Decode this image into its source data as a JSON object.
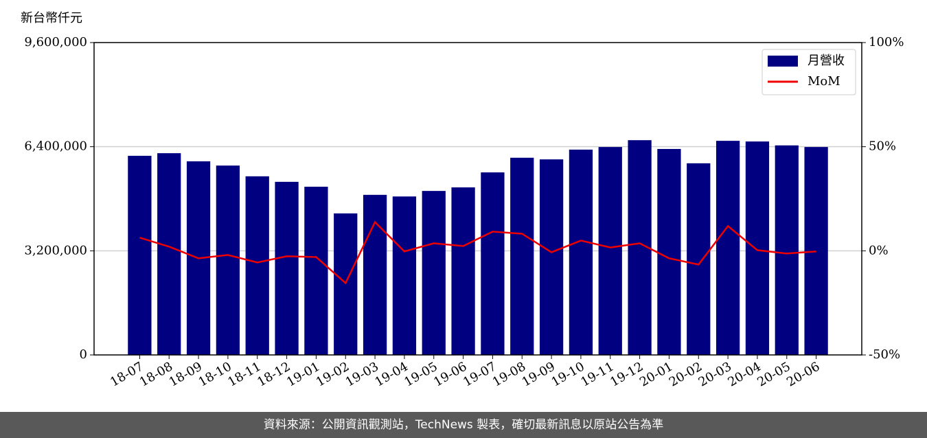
{
  "chart_data": {
    "type": "bar",
    "ylabel": "新台幣仟元",
    "categories": [
      "18-07",
      "18-08",
      "18-09",
      "18-10",
      "18-11",
      "18-12",
      "19-01",
      "19-02",
      "19-03",
      "19-04",
      "19-05",
      "19-06",
      "19-07",
      "19-08",
      "19-09",
      "19-10",
      "19-11",
      "19-12",
      "20-01",
      "20-02",
      "20-03",
      "20-04",
      "20-05",
      "20-06"
    ],
    "series": [
      {
        "name": "月營收",
        "type": "bar",
        "color": "#000080",
        "values": [
          6120000,
          6200000,
          5950000,
          5820000,
          5490000,
          5320000,
          5170000,
          4350000,
          4920000,
          4870000,
          5040000,
          5150000,
          5610000,
          6060000,
          6010000,
          6310000,
          6390000,
          6600000,
          6330000,
          5890000,
          6580000,
          6560000,
          6440000,
          6390000
        ]
      },
      {
        "name": "MoM",
        "type": "line",
        "color": "#ee0000",
        "axis": "y2",
        "values": [
          6.3,
          2.0,
          -3.6,
          -2.0,
          -5.6,
          -2.6,
          -3.0,
          -15.5,
          13.8,
          -0.3,
          3.6,
          2.3,
          9.2,
          8.2,
          -0.7,
          4.9,
          1.6,
          3.6,
          -3.6,
          -6.6,
          11.9,
          0.3,
          -1.3,
          -0.3
        ]
      }
    ],
    "ylim": [
      0,
      9600000
    ],
    "yticks": [
      0,
      {
        "value": 3200000,
        "label": "3,200,000"
      },
      {
        "value": 6400000,
        "label": "6,400,000"
      },
      {
        "value": 9600000,
        "label": "9,600,000"
      }
    ],
    "y2lim": [
      -50,
      100
    ],
    "y2ticks": [
      {
        "value": -50,
        "label": "-50%"
      },
      {
        "value": 0,
        "label": "0%"
      },
      {
        "value": 50,
        "label": "50%"
      },
      {
        "value": 100,
        "label": "100%"
      }
    ],
    "grid": true,
    "legend": "upper right"
  },
  "footer": "資料來源：公開資訊觀測站，TechNews 製表，確切最新訊息以原站公告為準"
}
